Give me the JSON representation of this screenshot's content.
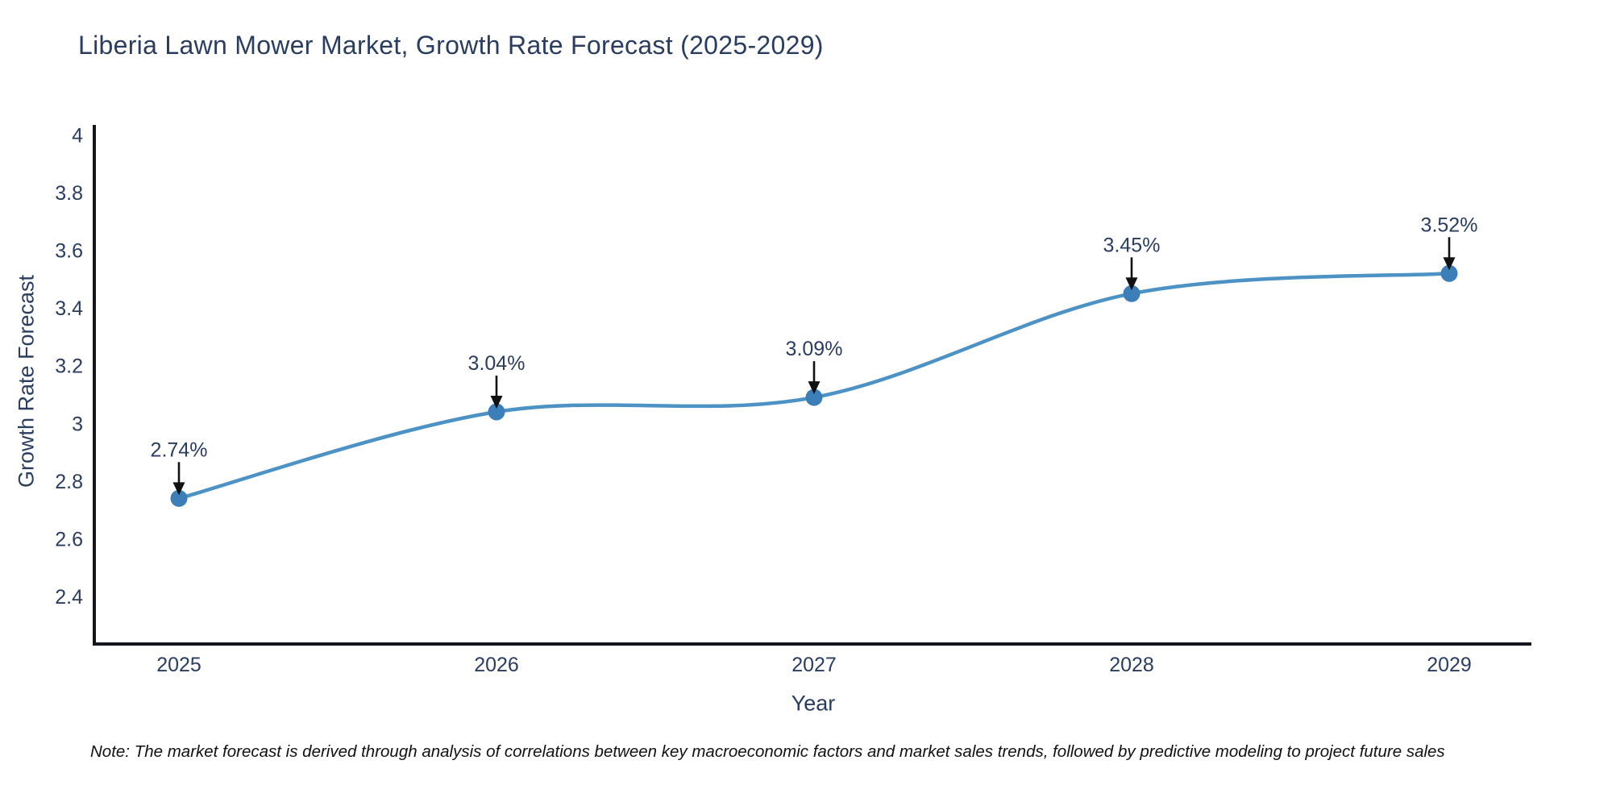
{
  "title": "Liberia Lawn Mower Market, Growth Rate Forecast (2025-2029)",
  "note": "Note: The market forecast is derived through analysis of correlations between key macroeconomic factors and market sales trends, followed by predictive modeling to project future sales",
  "chart_data": {
    "type": "line",
    "title": "Liberia Lawn Mower Market, Growth Rate Forecast (2025-2029)",
    "categories": [
      "2025",
      "2026",
      "2027",
      "2028",
      "2029"
    ],
    "values": [
      2.74,
      3.04,
      3.09,
      3.45,
      3.52
    ],
    "point_labels": [
      "2.74%",
      "3.04%",
      "3.09%",
      "3.45%",
      "3.52%"
    ],
    "xlabel": "Year",
    "ylabel": "Growth Rate Forecast",
    "ylim": [
      2.235,
      4.035
    ],
    "yticks": [
      "4",
      "3.8",
      "3.6",
      "3.4",
      "3.2",
      "3",
      "2.8",
      "2.6",
      "2.4"
    ],
    "ytick_values": [
      4,
      3.8,
      3.6,
      3.4,
      3.2,
      3,
      2.8,
      2.6,
      2.4
    ],
    "grid": false,
    "legend": false,
    "line_shape": "spline",
    "line_color": "#4d92c5",
    "marker_color": "#3c7fb8",
    "arrow_color": "#111111",
    "text_color": "#2b3d5f",
    "axis_color": "#15151d"
  }
}
